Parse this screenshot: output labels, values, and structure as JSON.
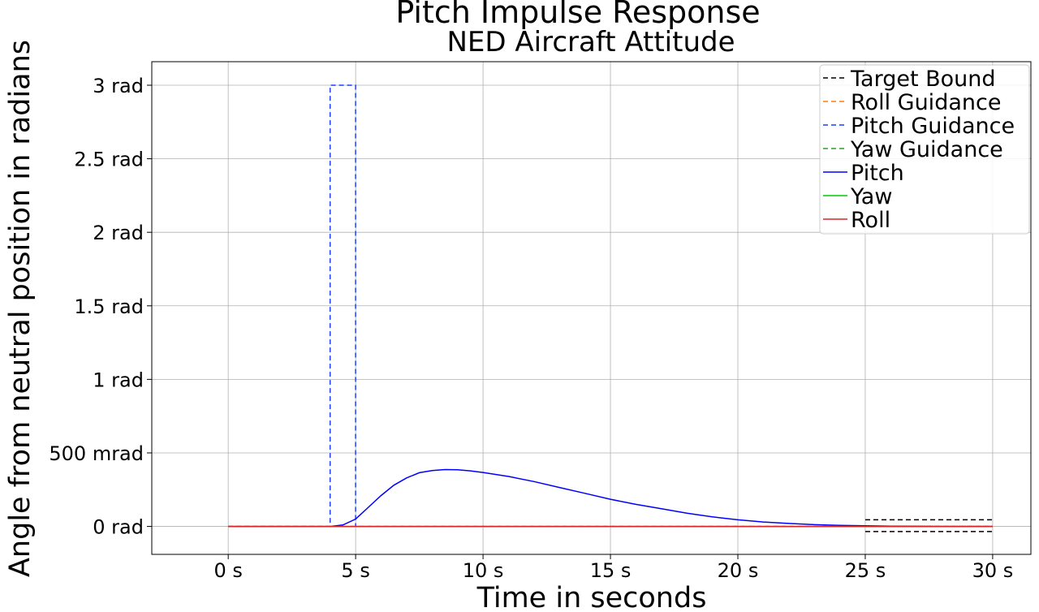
{
  "chart_data": {
    "type": "line",
    "title": "Pitch Impulse Response",
    "subtitle": "NED Aircraft Attitude",
    "xlabel": "Time in seconds",
    "ylabel": "Angle from neutral position in radians",
    "xlim": [
      -3,
      31.5
    ],
    "ylim": [
      -0.19,
      3.16
    ],
    "grid": true,
    "legend_position": "top-right",
    "x_ticks": [
      {
        "value": 0,
        "label": "0 s"
      },
      {
        "value": 5,
        "label": "5 s"
      },
      {
        "value": 10,
        "label": "10 s"
      },
      {
        "value": 15,
        "label": "15 s"
      },
      {
        "value": 20,
        "label": "20 s"
      },
      {
        "value": 25,
        "label": "25 s"
      },
      {
        "value": 30,
        "label": "30 s"
      }
    ],
    "y_ticks": [
      {
        "value": 0,
        "label": "0 rad"
      },
      {
        "value": 0.5,
        "label": "500 mrad"
      },
      {
        "value": 1.0,
        "label": "1 rad"
      },
      {
        "value": 1.5,
        "label": "1.5 rad"
      },
      {
        "value": 2.0,
        "label": "2 rad"
      },
      {
        "value": 2.5,
        "label": "2.5 rad"
      },
      {
        "value": 3.0,
        "label": "3 rad"
      }
    ],
    "series": [
      {
        "name": "Target Bound",
        "color": "#000000",
        "style": "dashed",
        "segments": [
          {
            "x": [
              25,
              30
            ],
            "y": [
              0.045,
              0.045
            ]
          },
          {
            "x": [
              25,
              30
            ],
            "y": [
              -0.035,
              -0.035
            ]
          }
        ]
      },
      {
        "name": "Roll Guidance",
        "color": "#ff7f0e",
        "style": "dashed",
        "x": [
          0,
          30
        ],
        "y": [
          0,
          0
        ]
      },
      {
        "name": "Pitch Guidance",
        "color": "#1f3fff",
        "style": "dashed",
        "x": [
          0,
          4,
          4,
          5,
          5,
          30
        ],
        "y": [
          0,
          0,
          3,
          3,
          0,
          0
        ]
      },
      {
        "name": "Yaw Guidance",
        "color": "#2ca02c",
        "style": "dashed",
        "x": [
          0,
          30
        ],
        "y": [
          0,
          0
        ]
      },
      {
        "name": "Pitch",
        "color": "#0000ff",
        "style": "solid",
        "x": [
          0,
          4,
          4.5,
          5,
          5.5,
          6,
          6.5,
          7,
          7.5,
          8,
          8.5,
          9,
          9.5,
          10,
          11,
          12,
          13,
          14,
          15,
          16,
          17,
          18,
          19,
          20,
          21,
          22,
          23,
          24,
          25,
          26,
          27,
          28,
          29,
          30
        ],
        "y": [
          0,
          0,
          0.01,
          0.05,
          0.13,
          0.21,
          0.28,
          0.33,
          0.365,
          0.38,
          0.387,
          0.385,
          0.378,
          0.367,
          0.34,
          0.305,
          0.265,
          0.225,
          0.185,
          0.15,
          0.12,
          0.09,
          0.065,
          0.045,
          0.03,
          0.02,
          0.012,
          0.007,
          0.004,
          0.002,
          0.001,
          0.0,
          0.0,
          0.0
        ]
      },
      {
        "name": "Yaw",
        "color": "#00cc00",
        "style": "solid",
        "x": [
          0,
          30
        ],
        "y": [
          0,
          0
        ]
      },
      {
        "name": "Roll",
        "color": "#d62728",
        "style": "solid",
        "x": [
          0,
          30
        ],
        "y": [
          0,
          0
        ]
      }
    ]
  }
}
